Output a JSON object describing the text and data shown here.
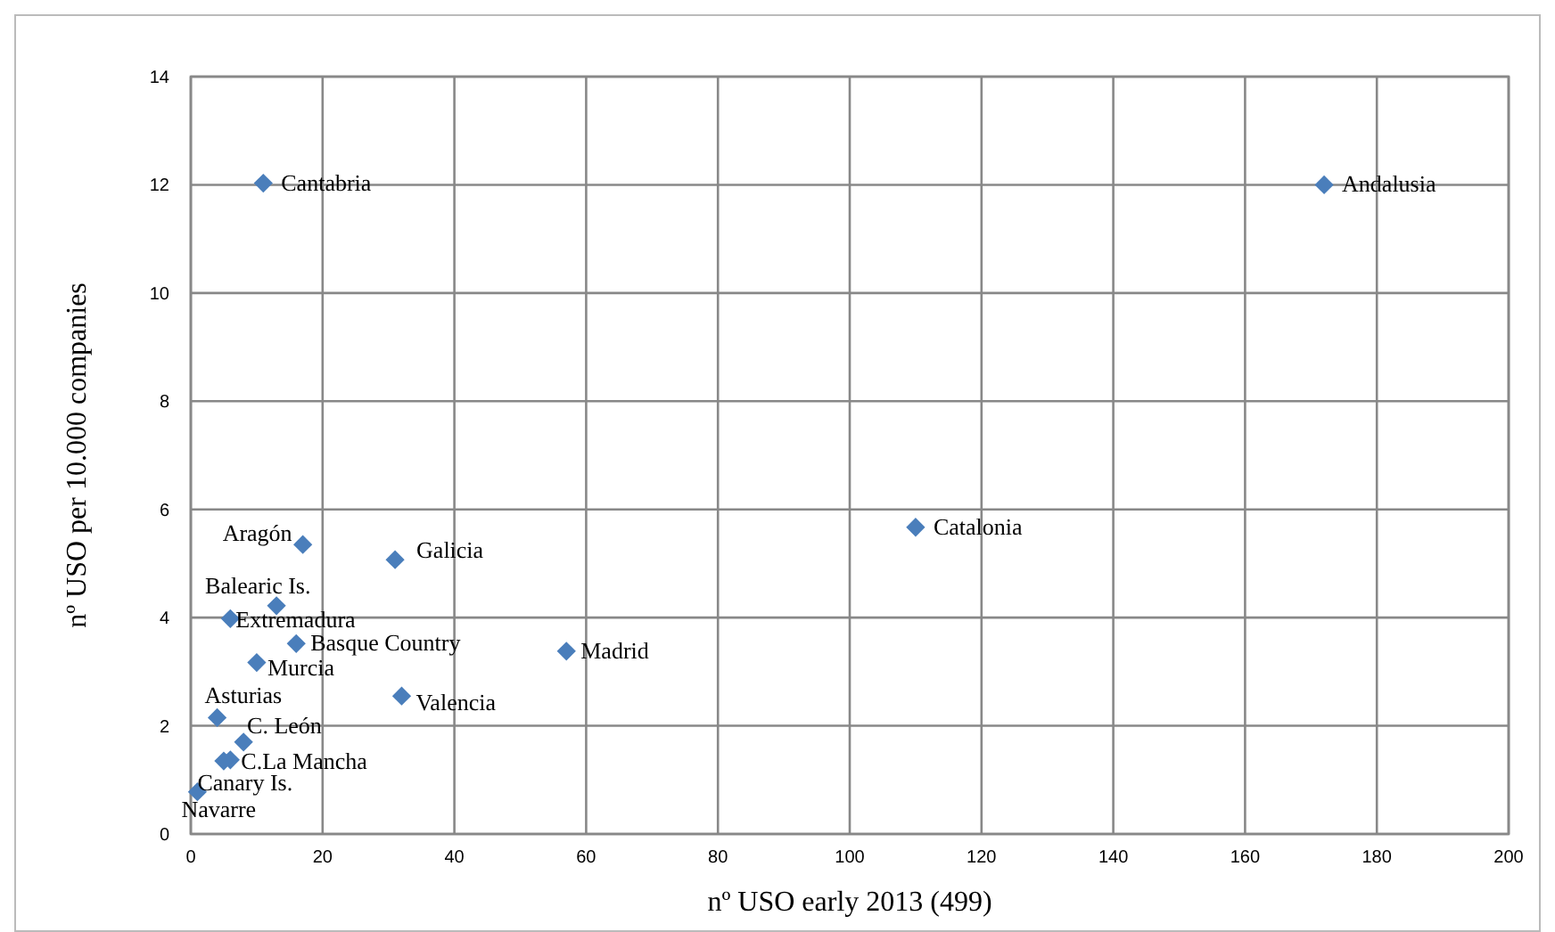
{
  "chart_data": {
    "type": "scatter",
    "xlabel": "nº  USO early 2013 (499)",
    "ylabel": "nº USO per 10.000 companies",
    "xlim": [
      0,
      200
    ],
    "xticks": [
      0,
      20,
      40,
      60,
      80,
      100,
      120,
      140,
      160,
      180,
      200
    ],
    "ylim": [
      0,
      14
    ],
    "yticks": [
      0,
      2,
      4,
      6,
      8,
      10,
      12,
      14
    ],
    "grid": true,
    "marker": "diamond",
    "series": [
      {
        "color": "#4a7ebb",
        "x": [
          11,
          172,
          110,
          17,
          31,
          13,
          6,
          16,
          57,
          10,
          32,
          4,
          8,
          6,
          5,
          1
        ],
        "values": [
          12.03,
          12.0,
          5.67,
          5.35,
          5.07,
          4.22,
          3.98,
          3.52,
          3.38,
          3.17,
          2.55,
          2.15,
          1.7,
          1.37,
          1.35,
          0.78
        ]
      }
    ],
    "annotations": [
      {
        "text": "Cantabria",
        "x": 11,
        "y": 12.03
      },
      {
        "text": "Andalusia",
        "x": 172,
        "y": 12.0
      },
      {
        "text": "Catalonia",
        "x": 110,
        "y": 5.67
      },
      {
        "text": "Aragón",
        "x": 17,
        "y": 5.35
      },
      {
        "text": "Galicia",
        "x": 31,
        "y": 5.07
      },
      {
        "text": "Balearic Is.",
        "x": 13,
        "y": 4.22
      },
      {
        "text": "Extremadura",
        "x": 6,
        "y": 3.98
      },
      {
        "text": "Basque Country",
        "x": 16,
        "y": 3.52
      },
      {
        "text": "Madrid",
        "x": 57,
        "y": 3.38
      },
      {
        "text": "Murcia",
        "x": 10,
        "y": 3.17
      },
      {
        "text": "Valencia",
        "x": 32,
        "y": 2.55
      },
      {
        "text": "Asturias",
        "x": 4,
        "y": 2.15
      },
      {
        "text": "C. León",
        "x": 8,
        "y": 1.7
      },
      {
        "text": "C.La Mancha",
        "x": 6,
        "y": 1.37
      },
      {
        "text": "Canary Is.",
        "x": 1,
        "y": 0.78
      },
      {
        "text": "Navarre",
        "x": 1,
        "y": 0.78
      }
    ]
  }
}
